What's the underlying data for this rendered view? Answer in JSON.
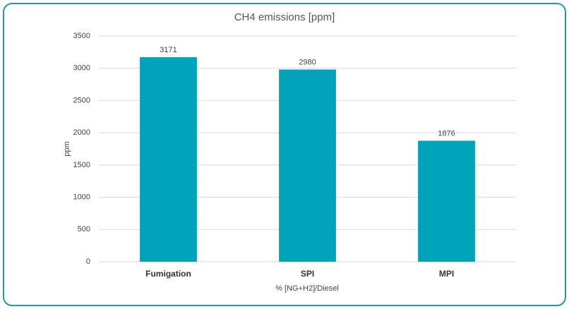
{
  "chart_data": {
    "type": "bar",
    "title": "CH4 emissions [ppm]",
    "x_label": "% [NG+H2]/Diesel",
    "y_label": "ppm",
    "categories": [
      "Fumigation",
      "SPI",
      "MPI"
    ],
    "values": [
      3171,
      2980,
      1876
    ],
    "color": "#00a3b9",
    "ylim": [
      0,
      3500
    ],
    "yticks": [
      0,
      500,
      1000,
      1500,
      2000,
      2500,
      3000,
      3500
    ],
    "grid": true
  }
}
